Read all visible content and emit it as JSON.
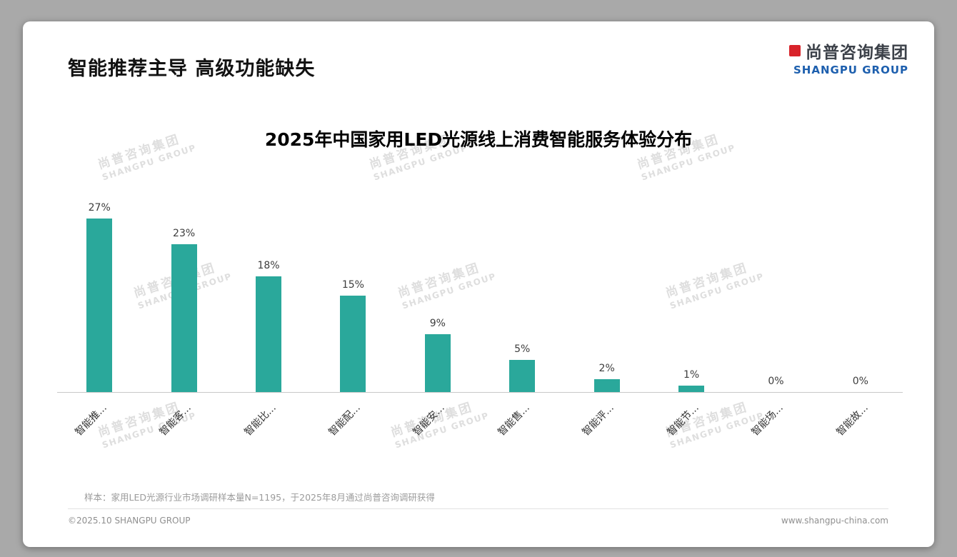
{
  "slide": {
    "title": "智能推荐主导 高级功能缺失",
    "logo": {
      "cn": "尚普咨询集团",
      "en": "SHANGPU GROUP"
    },
    "watermark": {
      "cn": "尚普咨询集团",
      "en": "SHANGPU GROUP"
    },
    "note": "样本：家用LED光源行业市场调研样本量N=1195，于2025年8月通过尚普咨询调研获得",
    "footer": {
      "left": "©2025.10 SHANGPU GROUP",
      "right": "www.shangpu-china.com"
    }
  },
  "chart_data": {
    "type": "bar",
    "title": "2025年中国家用LED光源线上消费智能服务体验分布",
    "categories": [
      "智能推...",
      "智能客...",
      "智能比...",
      "智能配...",
      "智能安...",
      "智能售...",
      "智能评...",
      "智能节...",
      "智能场...",
      "智能故..."
    ],
    "values": [
      27,
      23,
      18,
      15,
      9,
      5,
      2,
      1,
      0,
      0
    ],
    "value_labels": [
      "27%",
      "23%",
      "18%",
      "15%",
      "9%",
      "5%",
      "2%",
      "1%",
      "0%",
      "0%"
    ],
    "bar_color": "#2aa89b",
    "ylabel": "",
    "xlabel": "",
    "ylim": [
      0,
      30
    ],
    "grid": false,
    "legend": false
  }
}
